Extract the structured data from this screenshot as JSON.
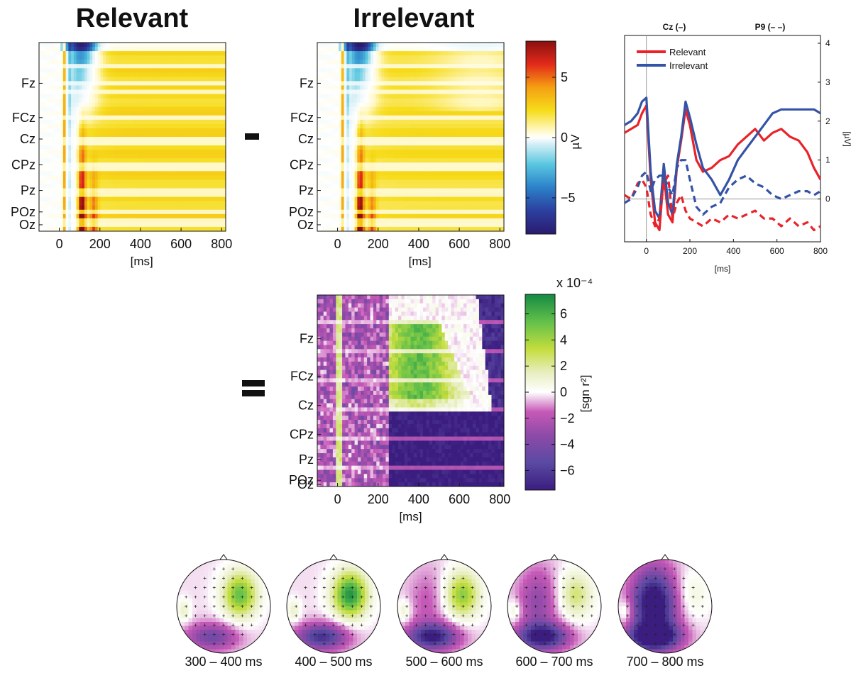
{
  "titles": {
    "relevant": "Relevant",
    "irrelevant": "Irrelevant"
  },
  "operators": {
    "minus": "-",
    "equals": "="
  },
  "heatmap_channels": [
    "Fz",
    "FCz",
    "Cz",
    "CPz",
    "Pz",
    "POz",
    "Oz"
  ],
  "colors": {
    "relevant": "#e8232a",
    "irrelevant": "#3553a6",
    "uv_map": [
      "#2a1b6e",
      "#2c3fa0",
      "#2b80c8",
      "#58c6e0",
      "#ffffff",
      "#fff39a",
      "#f6dc1a",
      "#f5a012",
      "#e22a1a",
      "#8a1010"
    ],
    "r2_map": [
      "#3b1d7f",
      "#5a4aa3",
      "#8e4aa8",
      "#c659b7",
      "#ffffff",
      "#e8eec0",
      "#c4dd3e",
      "#63c04a",
      "#148a44"
    ]
  },
  "chart_data": [
    {
      "type": "heatmap",
      "name": "relevant-erp",
      "title": "Relevant",
      "xlabel": "[ms]",
      "xlim": [
        -100,
        820
      ],
      "xticks": [
        0,
        200,
        400,
        600,
        800
      ],
      "y_tick_labels": [
        "Fz",
        "FCz",
        "Cz",
        "CPz",
        "Pz",
        "POz",
        "Oz"
      ],
      "color_scale": "uV"
    },
    {
      "type": "heatmap",
      "name": "irrelevant-erp",
      "title": "Irrelevant",
      "xlabel": "[ms]",
      "xlim": [
        -100,
        820
      ],
      "xticks": [
        0,
        200,
        400,
        600,
        800
      ],
      "y_tick_labels": [
        "Fz",
        "FCz",
        "Cz",
        "CPz",
        "Pz",
        "POz",
        "Oz"
      ],
      "color_scale": "uV"
    },
    {
      "type": "heatmap",
      "name": "uv-colorbar",
      "label": "µV",
      "range": [
        -8,
        8
      ],
      "ticks": [
        5,
        0,
        -5
      ],
      "tick_labels": [
        "5",
        "0",
        "−5"
      ]
    },
    {
      "type": "line",
      "name": "erp-timecourse",
      "header_left": "Cz (–)",
      "header_right": "P9 (– –)",
      "xlabel": "[ms]",
      "ylabel": "[µV]",
      "xlim": [
        -100,
        800
      ],
      "ylim": [
        -1.1,
        4.2
      ],
      "xticks": [
        -100,
        0,
        200,
        400,
        600,
        800
      ],
      "xtick_labels": [
        "",
        "0",
        "200",
        "400",
        "600",
        "800"
      ],
      "yticks": [
        0,
        1,
        2,
        3,
        4
      ],
      "legend": "top-left",
      "series": [
        {
          "name": "Relevant",
          "channel": "Cz",
          "style": "solid",
          "color": "#e8232a",
          "x": [
            -100,
            -70,
            -40,
            -20,
            0,
            20,
            40,
            60,
            80,
            100,
            120,
            140,
            160,
            180,
            200,
            230,
            260,
            300,
            340,
            380,
            420,
            460,
            500,
            540,
            580,
            620,
            660,
            700,
            740,
            770,
            800
          ],
          "y": [
            1.7,
            1.8,
            1.9,
            2.2,
            2.4,
            0.5,
            -0.6,
            -0.8,
            0.6,
            -0.4,
            -0.6,
            0.8,
            1.5,
            2.3,
            1.9,
            1.0,
            0.7,
            0.8,
            1.0,
            1.1,
            1.4,
            1.6,
            1.8,
            1.5,
            1.7,
            1.8,
            1.6,
            1.5,
            1.2,
            0.8,
            0.5
          ]
        },
        {
          "name": "Irrelevant",
          "channel": "Cz",
          "style": "solid",
          "color": "#3553a6",
          "x": [
            -100,
            -70,
            -40,
            -20,
            0,
            20,
            40,
            60,
            80,
            100,
            120,
            140,
            160,
            180,
            200,
            230,
            260,
            300,
            340,
            380,
            420,
            460,
            500,
            540,
            580,
            620,
            660,
            700,
            740,
            770,
            800
          ],
          "y": [
            1.9,
            2.0,
            2.2,
            2.5,
            2.6,
            0.7,
            -0.3,
            -0.5,
            0.9,
            -0.1,
            -0.4,
            0.9,
            1.6,
            2.5,
            2.1,
            1.4,
            0.8,
            0.5,
            0.1,
            0.5,
            1.0,
            1.3,
            1.6,
            1.9,
            2.2,
            2.3,
            2.3,
            2.3,
            2.3,
            2.3,
            2.2
          ]
        },
        {
          "name": "Relevant",
          "channel": "P9",
          "style": "dashed",
          "color": "#e8232a",
          "x": [
            -100,
            -70,
            -40,
            -20,
            0,
            20,
            40,
            60,
            80,
            100,
            120,
            140,
            160,
            180,
            200,
            230,
            260,
            300,
            340,
            380,
            420,
            460,
            500,
            540,
            580,
            620,
            660,
            700,
            740,
            770,
            800
          ],
          "y": [
            0.1,
            0.0,
            0.4,
            0.5,
            0.3,
            -0.4,
            -0.7,
            -0.5,
            0.4,
            0.6,
            -0.5,
            -0.1,
            0.1,
            -0.3,
            -0.5,
            -0.6,
            -0.7,
            -0.5,
            -0.6,
            -0.4,
            -0.5,
            -0.4,
            -0.3,
            -0.5,
            -0.5,
            -0.7,
            -0.5,
            -0.7,
            -0.6,
            -0.8,
            -0.7
          ]
        },
        {
          "name": "Irrelevant",
          "channel": "P9",
          "style": "dashed",
          "color": "#3553a6",
          "x": [
            -100,
            -70,
            -40,
            -20,
            0,
            20,
            40,
            60,
            80,
            100,
            120,
            140,
            160,
            180,
            200,
            230,
            260,
            300,
            340,
            380,
            420,
            460,
            500,
            540,
            580,
            620,
            660,
            700,
            740,
            770,
            800
          ],
          "y": [
            -0.1,
            0.0,
            0.3,
            0.6,
            0.7,
            0.2,
            0.5,
            0.6,
            0.6,
            0.3,
            0.1,
            0.8,
            1.0,
            1.0,
            0.5,
            -0.2,
            -0.4,
            -0.2,
            -0.1,
            0.3,
            0.5,
            0.6,
            0.4,
            0.3,
            0.1,
            0.0,
            0.1,
            0.2,
            0.2,
            0.1,
            0.2
          ]
        }
      ]
    },
    {
      "type": "heatmap",
      "name": "difference-r2",
      "xlabel": "[ms]",
      "xlim": [
        -100,
        820
      ],
      "xticks": [
        0,
        200,
        400,
        600,
        800
      ],
      "y_tick_labels": [
        "Fz",
        "FCz",
        "Cz",
        "CPz",
        "Pz",
        "POz",
        "Oz"
      ],
      "color_scale": "sgn r2"
    },
    {
      "type": "heatmap",
      "name": "r2-colorbar",
      "label": "[sgn r²]",
      "exponent_label": "x 10⁻⁴",
      "range": [
        -7.5,
        7.5
      ],
      "ticks": [
        6,
        4,
        2,
        0,
        -2,
        -4,
        -6
      ],
      "tick_labels": [
        "6",
        "4",
        "2",
        "0",
        "−2",
        "−4",
        "−6"
      ]
    },
    {
      "type": "heatmap",
      "name": "scalp-topographies",
      "color_scale": "sgn r2",
      "intervals": [
        "300 – 400 ms",
        "400 – 500 ms",
        "500 – 600 ms",
        "600 – 700 ms",
        "700 – 800 ms"
      ]
    }
  ]
}
